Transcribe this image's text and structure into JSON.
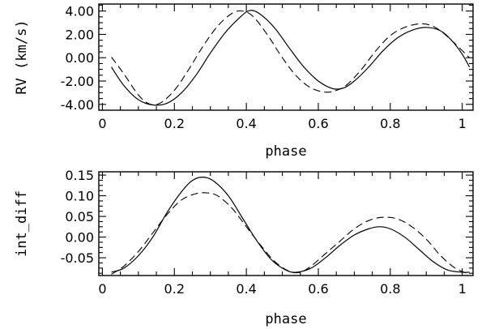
{
  "chart_data": [
    {
      "type": "line",
      "xlabel": "phase",
      "ylabel": "RV (km/s)",
      "xlim": [
        -0.01,
        1.03
      ],
      "ylim": [
        -4.5,
        4.6
      ],
      "xticks": [
        0,
        0.2,
        0.4,
        0.6,
        0.8,
        1
      ],
      "xtick_labels": [
        "0",
        "0.2",
        "0.4",
        "0.6",
        "0.8",
        "1"
      ],
      "yticks": [
        -4,
        -2,
        0,
        2,
        4
      ],
      "ytick_labels": [
        "-4.00",
        "-2.00",
        "0.00",
        "2.00",
        "4.00"
      ],
      "grid": false,
      "series": [
        {
          "style": "solid",
          "x": [
            0.025,
            0.06,
            0.1,
            0.14,
            0.18,
            0.22,
            0.26,
            0.3,
            0.34,
            0.38,
            0.41,
            0.44,
            0.48,
            0.52,
            0.56,
            0.6,
            0.64,
            0.67,
            0.7,
            0.74,
            0.78,
            0.82,
            0.86,
            0.9,
            0.94,
            0.97,
            1.0,
            1.02
          ],
          "y": [
            -0.8,
            -2.4,
            -3.6,
            -4.05,
            -3.9,
            -3.0,
            -1.5,
            0.4,
            2.1,
            3.4,
            4.05,
            3.7,
            2.5,
            0.8,
            -0.8,
            -2.0,
            -2.65,
            -2.6,
            -2.0,
            -0.8,
            0.6,
            1.7,
            2.35,
            2.6,
            2.3,
            1.5,
            0.3,
            -0.8
          ]
        },
        {
          "style": "dashed",
          "x": [
            0.025,
            0.06,
            0.1,
            0.13,
            0.16,
            0.2,
            0.24,
            0.28,
            0.32,
            0.36,
            0.39,
            0.42,
            0.46,
            0.5,
            0.54,
            0.58,
            0.62,
            0.65,
            0.68,
            0.72,
            0.76,
            0.8,
            0.84,
            0.88,
            0.91,
            0.94,
            0.98,
            1.02
          ],
          "y": [
            0.05,
            -1.4,
            -3.2,
            -3.95,
            -3.9,
            -2.8,
            -1.0,
            1.0,
            2.7,
            3.8,
            4.0,
            3.5,
            1.9,
            0.0,
            -1.6,
            -2.6,
            -2.95,
            -2.8,
            -2.3,
            -1.0,
            0.6,
            1.9,
            2.6,
            2.9,
            2.8,
            2.3,
            1.2,
            0.0
          ]
        }
      ]
    },
    {
      "type": "line",
      "xlabel": "phase",
      "ylabel": "int_diff",
      "xlim": [
        -0.01,
        1.03
      ],
      "ylim": [
        -0.093,
        0.158
      ],
      "xticks": [
        0,
        0.2,
        0.4,
        0.6,
        0.8,
        1
      ],
      "xtick_labels": [
        "0",
        "0.2",
        "0.4",
        "0.6",
        "0.8",
        "1"
      ],
      "yticks": [
        -0.05,
        0,
        0.05,
        0.1,
        0.15
      ],
      "ytick_labels": [
        "-0.05",
        "0.00",
        "0.05",
        "0.10",
        "0.15"
      ],
      "grid": false,
      "series": [
        {
          "style": "solid",
          "x": [
            0.025,
            0.06,
            0.1,
            0.14,
            0.18,
            0.22,
            0.25,
            0.28,
            0.31,
            0.35,
            0.39,
            0.43,
            0.47,
            0.51,
            0.54,
            0.58,
            0.62,
            0.66,
            0.7,
            0.74,
            0.77,
            0.8,
            0.84,
            0.88,
            0.92,
            0.96,
            1.0,
            1.02
          ],
          "y": [
            -0.085,
            -0.075,
            -0.045,
            0.0,
            0.06,
            0.11,
            0.137,
            0.145,
            0.135,
            0.1,
            0.045,
            -0.01,
            -0.055,
            -0.08,
            -0.085,
            -0.075,
            -0.05,
            -0.02,
            0.005,
            0.02,
            0.025,
            0.02,
            0.0,
            -0.03,
            -0.06,
            -0.08,
            -0.085,
            -0.085
          ]
        },
        {
          "style": "dashed",
          "x": [
            0.025,
            0.06,
            0.1,
            0.14,
            0.18,
            0.22,
            0.26,
            0.29,
            0.32,
            0.36,
            0.4,
            0.44,
            0.48,
            0.52,
            0.55,
            0.58,
            0.62,
            0.66,
            0.7,
            0.74,
            0.78,
            0.82,
            0.86,
            0.9,
            0.94,
            0.98,
            1.02
          ],
          "y": [
            -0.09,
            -0.07,
            -0.035,
            0.01,
            0.055,
            0.09,
            0.105,
            0.107,
            0.1,
            0.07,
            0.025,
            -0.02,
            -0.06,
            -0.083,
            -0.085,
            -0.07,
            -0.04,
            -0.01,
            0.02,
            0.04,
            0.048,
            0.044,
            0.025,
            -0.005,
            -0.045,
            -0.075,
            -0.09
          ]
        }
      ]
    }
  ]
}
